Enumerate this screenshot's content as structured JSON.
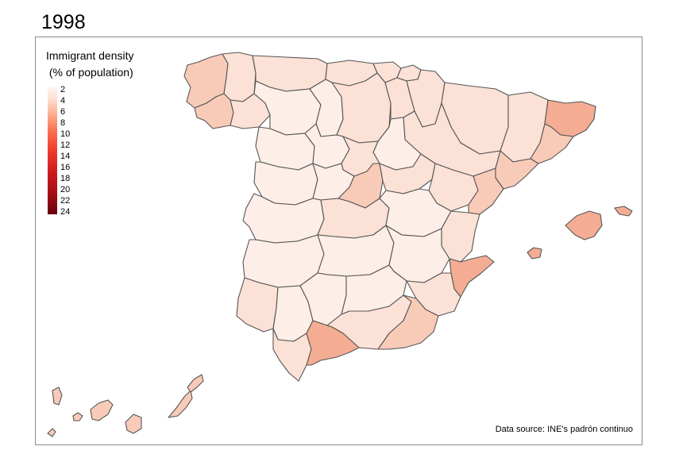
{
  "title": "1998",
  "legend": {
    "title_line1": "Immigrant density",
    "title_line2": " (% of population)",
    "ticks": [
      "2",
      "4",
      "6",
      "8",
      "10",
      "12",
      "14",
      "16",
      "18",
      "20",
      "22",
      "24"
    ],
    "color_scale": [
      "#fff5f0",
      "#fde0d2",
      "#fcbba1",
      "#fc9272",
      "#fb6a4a",
      "#ef3b2c",
      "#cb181d",
      "#a50f15",
      "#67000d"
    ]
  },
  "source": "Data source: INE's padrón continuo",
  "map": {
    "region": "Spain",
    "unit": "province",
    "colors": {
      "very_low": "#fdeee8",
      "low": "#fbe1d6",
      "mid": "#f8cbb8",
      "high": "#f4ad93",
      "border": "#555555"
    },
    "provinces": [
      {
        "name": "A Coruña",
        "level": "mid"
      },
      {
        "name": "Lugo",
        "level": "low"
      },
      {
        "name": "Asturias",
        "level": "low"
      },
      {
        "name": "Cantabria",
        "level": "low"
      },
      {
        "name": "Bizkaia",
        "level": "low"
      },
      {
        "name": "Gipuzkoa",
        "level": "low"
      },
      {
        "name": "Navarra",
        "level": "low"
      },
      {
        "name": "Huesca",
        "level": "low"
      },
      {
        "name": "Lleida",
        "level": "low"
      },
      {
        "name": "Girona",
        "level": "high"
      },
      {
        "name": "Barcelona",
        "level": "mid"
      },
      {
        "name": "Pontevedra",
        "level": "mid"
      },
      {
        "name": "Ourense",
        "level": "low"
      },
      {
        "name": "León",
        "level": "very_low"
      },
      {
        "name": "Palencia",
        "level": "very_low"
      },
      {
        "name": "Burgos",
        "level": "low"
      },
      {
        "name": "La Rioja",
        "level": "low"
      },
      {
        "name": "Zaragoza",
        "level": "low"
      },
      {
        "name": "Tarragona",
        "level": "mid"
      },
      {
        "name": "Zamora",
        "level": "very_low"
      },
      {
        "name": "Valladolid",
        "level": "very_low"
      },
      {
        "name": "Soria",
        "level": "very_low"
      },
      {
        "name": "Salamanca",
        "level": "very_low"
      },
      {
        "name": "Segovia",
        "level": "low"
      },
      {
        "name": "Ávila",
        "level": "very_low"
      },
      {
        "name": "Madrid",
        "level": "mid"
      },
      {
        "name": "Guadalajara",
        "level": "low"
      },
      {
        "name": "Teruel",
        "level": "low"
      },
      {
        "name": "Castellón",
        "level": "mid"
      },
      {
        "name": "Cáceres",
        "level": "very_low"
      },
      {
        "name": "Toledo",
        "level": "low"
      },
      {
        "name": "Cuenca",
        "level": "very_low"
      },
      {
        "name": "Valencia",
        "level": "low"
      },
      {
        "name": "Badajoz",
        "level": "very_low"
      },
      {
        "name": "Ciudad Real",
        "level": "very_low"
      },
      {
        "name": "Albacete",
        "level": "very_low"
      },
      {
        "name": "Alicante",
        "level": "high"
      },
      {
        "name": "Huelva",
        "level": "low"
      },
      {
        "name": "Sevilla",
        "level": "very_low"
      },
      {
        "name": "Córdoba",
        "level": "very_low"
      },
      {
        "name": "Jaén",
        "level": "very_low"
      },
      {
        "name": "Granada",
        "level": "low"
      },
      {
        "name": "Murcia",
        "level": "low"
      },
      {
        "name": "Almería",
        "level": "mid"
      },
      {
        "name": "Cádiz",
        "level": "low"
      },
      {
        "name": "Málaga",
        "level": "high"
      },
      {
        "name": "Baleares",
        "level": "high"
      },
      {
        "name": "Santa Cruz de Tenerife",
        "level": "mid"
      },
      {
        "name": "Las Palmas",
        "level": "mid"
      }
    ]
  }
}
